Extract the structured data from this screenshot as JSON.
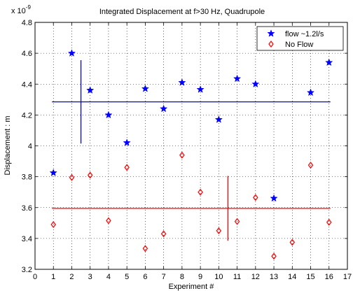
{
  "chart_data": {
    "type": "scatter",
    "title": "Integrated Displacement at f>30 Hz, Quadrupole",
    "xlabel": "Experiment #",
    "ylabel": "Displacement : m",
    "y_exponent_label": "x 10",
    "y_exponent_power": "-9",
    "xlim": [
      0,
      17
    ],
    "ylim": [
      3.2,
      4.8
    ],
    "xticks": [
      "0",
      "1",
      "2",
      "3",
      "4",
      "5",
      "6",
      "7",
      "8",
      "9",
      "10",
      "11",
      "12",
      "13",
      "14",
      "15",
      "16",
      "17"
    ],
    "yticks": [
      "3.2",
      "3.4",
      "3.6",
      "3.8",
      "4",
      "4.2",
      "4.4",
      "4.6",
      "4.8"
    ],
    "grid": true,
    "legend_position": "top-right",
    "series": [
      {
        "name": "flow ~1.2l/s",
        "color": "#0000ff",
        "marker": "star",
        "x": [
          1,
          2,
          3,
          4,
          5,
          6,
          7,
          8,
          9,
          10,
          11,
          12,
          13,
          15,
          16
        ],
        "y": [
          3.825,
          4.6,
          4.36,
          4.2,
          4.02,
          4.37,
          4.24,
          4.41,
          4.365,
          4.17,
          4.435,
          4.4,
          3.66,
          4.345,
          4.54
        ],
        "mean_line": {
          "y": 4.285,
          "x_from": 1,
          "x_to": 16
        },
        "spread_line": {
          "x": 2.5,
          "y_from": 4.015,
          "y_to": 4.555
        }
      },
      {
        "name": "No Flow",
        "color": "#ff0000",
        "marker": "diamond",
        "x": [
          1,
          2,
          3,
          4,
          5,
          6,
          7,
          8,
          9,
          10,
          11,
          12,
          13,
          14,
          15,
          16
        ],
        "y": [
          3.49,
          3.795,
          3.81,
          3.515,
          3.86,
          3.335,
          3.43,
          3.94,
          3.7,
          3.45,
          3.51,
          3.665,
          3.285,
          3.375,
          3.875,
          3.505
        ],
        "mean_line": {
          "y": 3.595,
          "x_from": 1,
          "x_to": 16
        },
        "spread_line": {
          "x": 10.5,
          "y_from": 3.385,
          "y_to": 3.805
        }
      }
    ]
  }
}
